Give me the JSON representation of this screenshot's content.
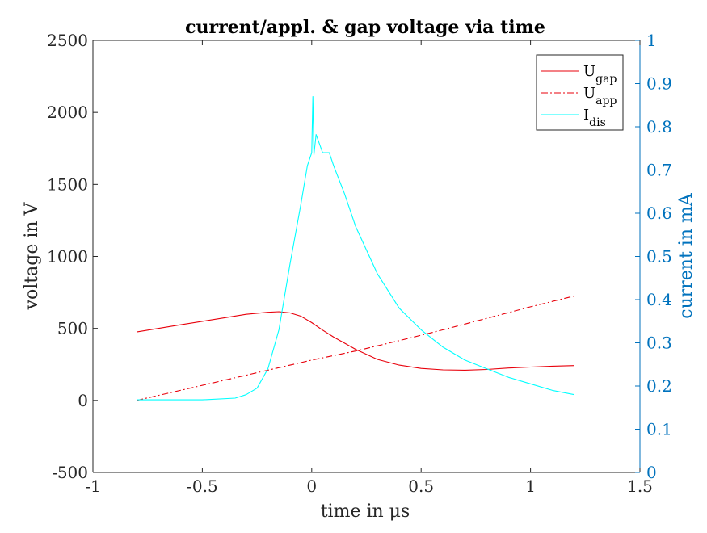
{
  "chart_data": {
    "type": "line",
    "title": "current/appl. & gap voltage via time",
    "xlabel": "time in μs",
    "ylabel_left": "voltage in V",
    "ylabel_right": "current in mA",
    "xlim": [
      -1,
      1.5
    ],
    "ylim_left": [
      -500,
      2500
    ],
    "ylim_right": [
      0,
      1
    ],
    "x_ticks": [
      "-1",
      "-0.5",
      "0",
      "0.5",
      "1",
      "1.5"
    ],
    "y_left_ticks": [
      "-500",
      "0",
      "500",
      "1000",
      "1500",
      "2000",
      "2500"
    ],
    "y_right_ticks": [
      "0",
      "0.1",
      "0.2",
      "0.3",
      "0.4",
      "0.5",
      "0.6",
      "0.7",
      "0.8",
      "0.9",
      "1"
    ],
    "grid": false,
    "legend_position": "top-right",
    "colors": {
      "gap": "#e8000b",
      "app": "#e8000b",
      "dis": "#00ffff",
      "right_axis": "#0072bd"
    },
    "series": [
      {
        "name": "U",
        "name_sub": "gap",
        "axis": "left",
        "style": "solid",
        "x": [
          -0.8,
          -0.6,
          -0.4,
          -0.3,
          -0.2,
          -0.15,
          -0.1,
          -0.05,
          0,
          0.05,
          0.1,
          0.15,
          0.2,
          0.3,
          0.4,
          0.5,
          0.6,
          0.7,
          0.8,
          0.9,
          1.0,
          1.1,
          1.2
        ],
        "y": [
          475,
          525,
          573,
          598,
          612,
          616,
          608,
          585,
          540,
          488,
          440,
          398,
          355,
          285,
          245,
          222,
          212,
          210,
          215,
          225,
          232,
          238,
          242
        ]
      },
      {
        "name": "U",
        "name_sub": "app",
        "axis": "left",
        "style": "dashdot",
        "x": [
          -0.8,
          -0.6,
          -0.4,
          -0.2,
          0,
          0.2,
          0.4,
          0.6,
          0.8,
          1.0,
          1.2
        ],
        "y": [
          0,
          70,
          140,
          210,
          280,
          343,
          415,
          490,
          570,
          650,
          725
        ]
      },
      {
        "name": "I",
        "name_sub": "dis",
        "axis": "right",
        "style": "solid",
        "x": [
          -0.8,
          -0.5,
          -0.35,
          -0.3,
          -0.25,
          -0.2,
          -0.15,
          -0.1,
          -0.05,
          -0.02,
          0,
          0.005,
          0.01,
          0.02,
          0.05,
          0.08,
          0.1,
          0.15,
          0.2,
          0.3,
          0.4,
          0.5,
          0.6,
          0.7,
          0.8,
          0.9,
          1.0,
          1.1,
          1.2
        ],
        "y": [
          0.168,
          0.168,
          0.172,
          0.18,
          0.195,
          0.24,
          0.33,
          0.48,
          0.62,
          0.71,
          0.74,
          0.87,
          0.735,
          0.782,
          0.74,
          0.74,
          0.71,
          0.645,
          0.57,
          0.46,
          0.38,
          0.33,
          0.29,
          0.26,
          0.24,
          0.22,
          0.205,
          0.19,
          0.18
        ]
      }
    ]
  }
}
